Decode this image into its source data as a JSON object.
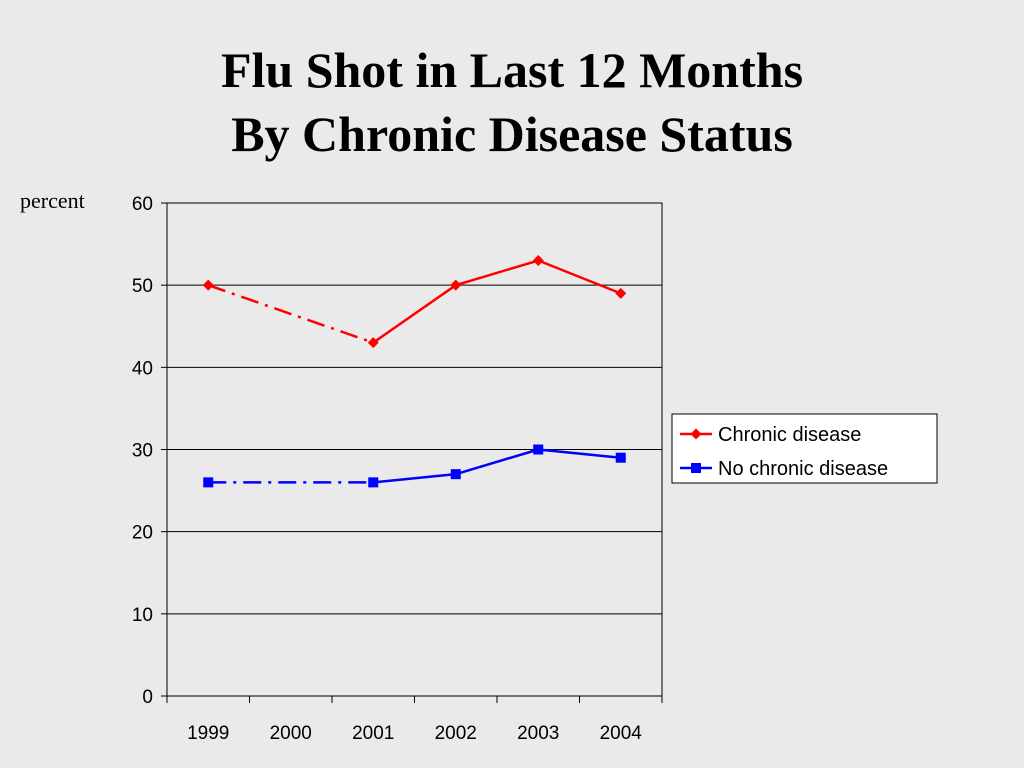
{
  "title_line1": "Flu Shot in Last 12 Months",
  "title_line2": "By Chronic Disease Status",
  "chart_data": {
    "type": "line",
    "ylabel": "percent",
    "ylim": [
      0,
      60
    ],
    "yticks": [
      0,
      10,
      20,
      30,
      40,
      50,
      60
    ],
    "categories": [
      "1999",
      "2000",
      "2001",
      "2002",
      "2003",
      "2004"
    ],
    "grid": true,
    "legend_position": "right",
    "series": [
      {
        "name": "Chronic disease",
        "color": "#ff0000",
        "marker": "diamond",
        "points": [
          {
            "x": "1999",
            "y": 50
          },
          {
            "x": "2001",
            "y": 43
          },
          {
            "x": "2002",
            "y": 50
          },
          {
            "x": "2003",
            "y": 53
          },
          {
            "x": "2004",
            "y": 49
          }
        ],
        "dashed_segments": [
          [
            "1999",
            "2001"
          ]
        ]
      },
      {
        "name": "No chronic disease",
        "color": "#0000ff",
        "marker": "square",
        "points": [
          {
            "x": "1999",
            "y": 26
          },
          {
            "x": "2001",
            "y": 26
          },
          {
            "x": "2002",
            "y": 27
          },
          {
            "x": "2003",
            "y": 30
          },
          {
            "x": "2004",
            "y": 29
          }
        ],
        "dashed_segments": [
          [
            "1999",
            "2001"
          ]
        ]
      }
    ]
  }
}
